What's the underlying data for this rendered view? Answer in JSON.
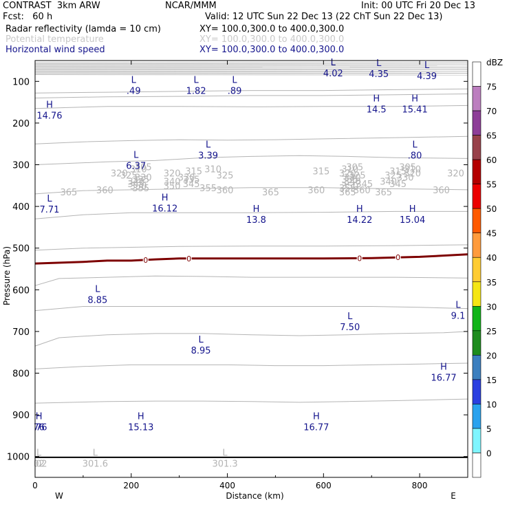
{
  "header": {
    "title_left": "CONTRAST  3km ARW",
    "title_mid": "NCAR/MMM",
    "init": "Init: 00 UTC Fri 20 Dec 13",
    "fcst": "Fcst:   60 h",
    "valid": "Valid: 12 UTC Sun 22 Dec 13 (22 ChT Sun 22 Dec 13)",
    "fields": [
      {
        "name": "Radar reflectivity (lamda = 10 cm)",
        "xy": "XY= 100.0,300.0 to 400.0,300.0",
        "color": "#000000"
      },
      {
        "name": "Potential temperature",
        "xy": "XY= 100.0,300.0 to 400.0,300.0",
        "color": "#c8c8c8"
      },
      {
        "name": "Horizontal wind speed",
        "xy": "XY= 100.0,300.0 to 400.0,300.0",
        "color": "#14148c"
      }
    ]
  },
  "chart_data": {
    "type": "cross-section",
    "ylabel": "Pressure (hPa)",
    "xlabel": "Distance (km)",
    "x_range": [
      0,
      900
    ],
    "y_range": [
      50,
      1050
    ],
    "x_ticks": [
      0,
      200,
      400,
      600,
      800
    ],
    "y_ticks": [
      100,
      200,
      300,
      400,
      500,
      600,
      700,
      800,
      900,
      1000
    ],
    "x_end_labels": {
      "left": "W",
      "right": "E"
    },
    "theta_contours": [
      {
        "value": 365,
        "points": [
          [
            0,
            128
          ],
          [
            150,
            126
          ],
          [
            300,
            124
          ],
          [
            450,
            122
          ],
          [
            600,
            122
          ],
          [
            750,
            120
          ],
          [
            900,
            118
          ]
        ],
        "labels": [
          [
            70,
            365
          ],
          [
            490,
            365
          ],
          [
            650,
            365
          ],
          [
            725,
            365
          ]
        ]
      },
      {
        "value": 360,
        "points": [
          [
            0,
            140
          ],
          [
            150,
            137
          ],
          [
            300,
            136
          ],
          [
            450,
            134
          ],
          [
            600,
            134
          ],
          [
            750,
            132
          ],
          [
            900,
            130
          ]
        ],
        "labels": [
          [
            145,
            360
          ],
          [
            395,
            360
          ],
          [
            585,
            360
          ],
          [
            680,
            360
          ],
          [
            845,
            360
          ]
        ]
      },
      {
        "value": 355,
        "points": [
          [
            0,
            165
          ],
          [
            150,
            160
          ],
          [
            300,
            160
          ],
          [
            450,
            161
          ],
          [
            600,
            160
          ],
          [
            750,
            160
          ],
          [
            900,
            158
          ]
        ],
        "labels": [
          [
            220,
            355
          ],
          [
            360,
            355
          ],
          [
            650,
            355
          ]
        ]
      },
      {
        "value": 350,
        "points": [
          [
            0,
            250
          ],
          [
            100,
            245
          ],
          [
            200,
            242
          ],
          [
            300,
            240
          ],
          [
            400,
            241
          ],
          [
            500,
            240
          ],
          [
            600,
            238
          ],
          [
            750,
            235
          ],
          [
            900,
            232
          ]
        ],
        "labels": [
          [
            215,
            350
          ],
          [
            285,
            350
          ],
          [
            655,
            350
          ]
        ]
      },
      {
        "value": 345,
        "points": [
          [
            0,
            300
          ],
          [
            150,
            293
          ],
          [
            250,
            290
          ],
          [
            350,
            283
          ],
          [
            450,
            280
          ],
          [
            550,
            278
          ],
          [
            650,
            280
          ],
          [
            750,
            283
          ],
          [
            900,
            285
          ]
        ],
        "labels": [
          [
            210,
            345
          ],
          [
            325,
            345
          ],
          [
            685,
            345
          ],
          [
            755,
            345
          ]
        ]
      },
      {
        "value": 340,
        "points": [
          [
            0,
            370
          ],
          [
            100,
            362
          ],
          [
            200,
            360
          ],
          [
            300,
            358
          ],
          [
            450,
            355
          ],
          [
            600,
            355
          ],
          [
            700,
            357
          ],
          [
            900,
            360
          ]
        ],
        "labels": [
          [
            210,
            340
          ],
          [
            285,
            340
          ],
          [
            660,
            340
          ],
          [
            735,
            340
          ]
        ]
      },
      {
        "value": 335,
        "points": [
          [
            0,
            430
          ],
          [
            100,
            420
          ],
          [
            200,
            415
          ],
          [
            300,
            415
          ],
          [
            450,
            415
          ],
          [
            600,
            414
          ],
          [
            750,
            412
          ],
          [
            900,
            412
          ]
        ],
        "labels": [
          [
            220,
            335
          ],
          [
            325,
            335
          ],
          [
            655,
            335
          ]
        ]
      },
      {
        "value": 330,
        "points": [
          [
            0,
            505
          ],
          [
            100,
            500
          ],
          [
            200,
            498
          ],
          [
            300,
            496
          ],
          [
            450,
            495
          ],
          [
            600,
            495
          ],
          [
            750,
            494
          ],
          [
            900,
            492
          ]
        ],
        "labels": [
          [
            225,
            330
          ],
          [
            315,
            330
          ],
          [
            660,
            330
          ],
          [
            770,
            330
          ]
        ]
      },
      {
        "value": 325,
        "points": [
          [
            0,
            590
          ],
          [
            50,
            573
          ],
          [
            150,
            570
          ],
          [
            250,
            567
          ],
          [
            350,
            568
          ],
          [
            450,
            570
          ],
          [
            550,
            570
          ],
          [
            650,
            570
          ],
          [
            750,
            570
          ],
          [
            900,
            572
          ]
        ],
        "labels": [
          [
            195,
            325
          ],
          [
            395,
            325
          ],
          [
            670,
            325
          ],
          [
            745,
            325
          ]
        ]
      },
      {
        "value": 320,
        "points": [
          [
            0,
            650
          ],
          [
            100,
            640
          ],
          [
            200,
            640
          ],
          [
            300,
            640
          ],
          [
            400,
            640
          ],
          [
            500,
            640
          ],
          [
            600,
            640
          ],
          [
            700,
            640
          ],
          [
            800,
            642
          ],
          [
            900,
            645
          ]
        ],
        "labels": [
          [
            175,
            320
          ],
          [
            285,
            320
          ],
          [
            650,
            320
          ],
          [
            785,
            320
          ],
          [
            875,
            320
          ]
        ]
      },
      {
        "value": 315,
        "points": [
          [
            0,
            735
          ],
          [
            50,
            715
          ],
          [
            150,
            708
          ],
          [
            250,
            705
          ],
          [
            350,
            705
          ],
          [
            450,
            708
          ],
          [
            550,
            710
          ],
          [
            650,
            708
          ],
          [
            750,
            705
          ],
          [
            850,
            703
          ],
          [
            900,
            700
          ]
        ],
        "labels": [
          [
            330,
            315
          ],
          [
            595,
            315
          ],
          [
            755,
            315
          ]
        ]
      },
      {
        "value": 310,
        "points": [
          [
            0,
            790
          ],
          [
            100,
            784
          ],
          [
            200,
            780
          ],
          [
            300,
            780
          ],
          [
            400,
            780
          ],
          [
            500,
            782
          ],
          [
            600,
            782
          ],
          [
            700,
            780
          ],
          [
            800,
            778
          ],
          [
            900,
            776
          ]
        ],
        "labels": [
          [
            215,
            310
          ],
          [
            370,
            310
          ],
          [
            655,
            310
          ],
          [
            785,
            310
          ]
        ]
      },
      {
        "value": 305,
        "points": [
          [
            0,
            872
          ],
          [
            150,
            868
          ],
          [
            250,
            867
          ],
          [
            350,
            867
          ],
          [
            450,
            868
          ],
          [
            550,
            870
          ],
          [
            650,
            868
          ],
          [
            750,
            866
          ],
          [
            900,
            862
          ]
        ],
        "labels": [
          [
            225,
            305
          ],
          [
            665,
            305
          ],
          [
            775,
            305
          ]
        ]
      }
    ],
    "reflectivity_0dbz_line": {
      "value": 0,
      "points": [
        [
          0,
          537
        ],
        [
          100,
          533
        ],
        [
          150,
          530
        ],
        [
          200,
          530
        ],
        [
          250,
          527
        ],
        [
          300,
          525
        ],
        [
          400,
          525
        ],
        [
          500,
          525
        ],
        [
          600,
          525
        ],
        [
          700,
          524
        ],
        [
          800,
          521
        ],
        [
          900,
          515
        ]
      ],
      "labels": [
        [
          230,
          0
        ],
        [
          320,
          0
        ],
        [
          675,
          0
        ],
        [
          755,
          0
        ]
      ],
      "color": "#7d0000"
    },
    "wind_extrema": [
      {
        "type": "L",
        "value": "4.02",
        "x": 620,
        "y": 68
      },
      {
        "type": "L",
        "value": "4.35",
        "x": 715,
        "y": 70
      },
      {
        "type": "L",
        "value": "4.39",
        "x": 815,
        "y": 75
      },
      {
        "type": "L",
        "value": ".49",
        "x": 205,
        "y": 110
      },
      {
        "type": "L",
        "value": "1.82",
        "x": 335,
        "y": 110
      },
      {
        "type": "L",
        "value": ".89",
        "x": 415,
        "y": 110
      },
      {
        "type": "H",
        "value": "14.5",
        "x": 710,
        "y": 155
      },
      {
        "type": "H",
        "value": "15.41",
        "x": 790,
        "y": 155
      },
      {
        "type": "H",
        "value": "14.76",
        "x": 30,
        "y": 170
      },
      {
        "type": "L",
        "value": "3.39",
        "x": 360,
        "y": 265
      },
      {
        "type": "L",
        "value": ".80",
        "x": 790,
        "y": 265
      },
      {
        "type": "L",
        "value": "6.37",
        "x": 210,
        "y": 290
      },
      {
        "type": "L",
        "value": "7.71",
        "x": 30,
        "y": 395
      },
      {
        "type": "H",
        "value": "16.12",
        "x": 270,
        "y": 392
      },
      {
        "type": "H",
        "value": "13.8",
        "x": 460,
        "y": 420
      },
      {
        "type": "H",
        "value": "14.22",
        "x": 675,
        "y": 420
      },
      {
        "type": "H",
        "value": "15.04",
        "x": 785,
        "y": 420
      },
      {
        "type": "L",
        "value": "8.85",
        "x": 130,
        "y": 612
      },
      {
        "type": "L",
        "value": "9.1",
        "x": 880,
        "y": 650
      },
      {
        "type": "L",
        "value": "7.50",
        "x": 655,
        "y": 677
      },
      {
        "type": "L",
        "value": "8.95",
        "x": 345,
        "y": 733
      },
      {
        "type": "H",
        "value": "16.77",
        "x": 850,
        "y": 798
      },
      {
        "type": "H",
        "value": "15.13",
        "x": 220,
        "y": 917
      },
      {
        "type": "H",
        "value": "16.77",
        "x": 585,
        "y": 917
      },
      {
        "type": "H",
        "value": "76",
        "x": 8,
        "y": 917
      },
      {
        "type": "L",
        "value": "301.6",
        "x": 125,
        "y": 1005
      },
      {
        "type": "L",
        "value": "301.3",
        "x": 395,
        "y": 1005
      },
      {
        "type": "L",
        "value": "02",
        "x": 8,
        "y": 1005
      }
    ],
    "colorbar": {
      "unit": "dBZ",
      "levels": [
        75,
        70,
        65,
        60,
        55,
        50,
        45,
        40,
        35,
        30,
        25,
        20,
        15,
        10,
        5,
        0
      ],
      "colors": [
        "#ffffff",
        "#bc7ebf",
        "#8e3d98",
        "#98414a",
        "#b40000",
        "#ec0000",
        "#ff5a00",
        "#ff9b3c",
        "#ffcc33",
        "#f5e614",
        "#11b419",
        "#1e8c1e",
        "#3b7fbf",
        "#2a3fe0",
        "#2aa2ee",
        "#7ff5ff",
        "#ffffff"
      ]
    }
  }
}
